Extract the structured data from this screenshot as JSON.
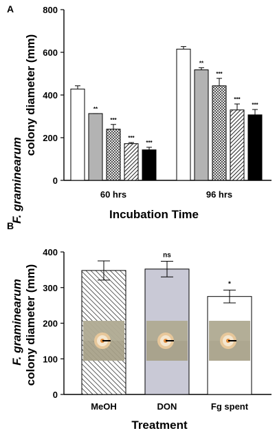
{
  "chart_data": [
    {
      "panel": "A",
      "type": "bar",
      "categories": [
        "60 hrs",
        "96 hrs"
      ],
      "xlabel": "Incubation Time",
      "ylabel_italic": "F. graminearum",
      "ylabel": "colony diameter (mm)",
      "yticks": [
        "0",
        "200",
        "400",
        "600",
        "800"
      ],
      "ylim": [
        0,
        800
      ],
      "grid": false,
      "series": [
        {
          "fill": "#ffffff",
          "pattern": "solid",
          "values": [
            428,
            615
          ],
          "errors": [
            15,
            12
          ],
          "sig": [
            "",
            ""
          ]
        },
        {
          "fill": "#b3b3b3",
          "pattern": "solid",
          "values": [
            313,
            518
          ],
          "errors": [
            0,
            10
          ],
          "sig": [
            "**",
            "**"
          ]
        },
        {
          "fill": "#bdbdbd",
          "pattern": "checker",
          "values": [
            240,
            443
          ],
          "errors": [
            22,
            35
          ],
          "sig": [
            "***",
            "***"
          ]
        },
        {
          "fill": "#ffffff",
          "pattern": "diagonal",
          "values": [
            172,
            330
          ],
          "errors": [
            5,
            28
          ],
          "sig": [
            "***",
            "***"
          ]
        },
        {
          "fill": "#000000",
          "pattern": "solid",
          "values": [
            143,
            307
          ],
          "errors": [
            12,
            25
          ],
          "sig": [
            "***",
            "***"
          ]
        }
      ]
    },
    {
      "panel": "B",
      "type": "bar",
      "categories": [
        "MeOH",
        "DON",
        "Fg spent"
      ],
      "values": [
        348,
        352,
        275
      ],
      "errors": [
        27,
        22,
        18
      ],
      "sig": [
        "",
        "ns",
        "*"
      ],
      "fills": [
        "hatch",
        "#c9c9d6",
        "#ffffff"
      ],
      "xlabel": "Treatment",
      "ylabel_italic": "F. graminearum",
      "ylabel": "colony diameter (mm)",
      "yticks": [
        "0",
        "100",
        "200",
        "300",
        "400"
      ],
      "ylim": [
        0,
        400
      ],
      "grid": false,
      "insets": [
        "colony-photo-icon",
        "colony-photo-icon",
        "colony-photo-icon"
      ]
    }
  ],
  "panels": {
    "a_letter": "A",
    "b_letter": "B"
  }
}
